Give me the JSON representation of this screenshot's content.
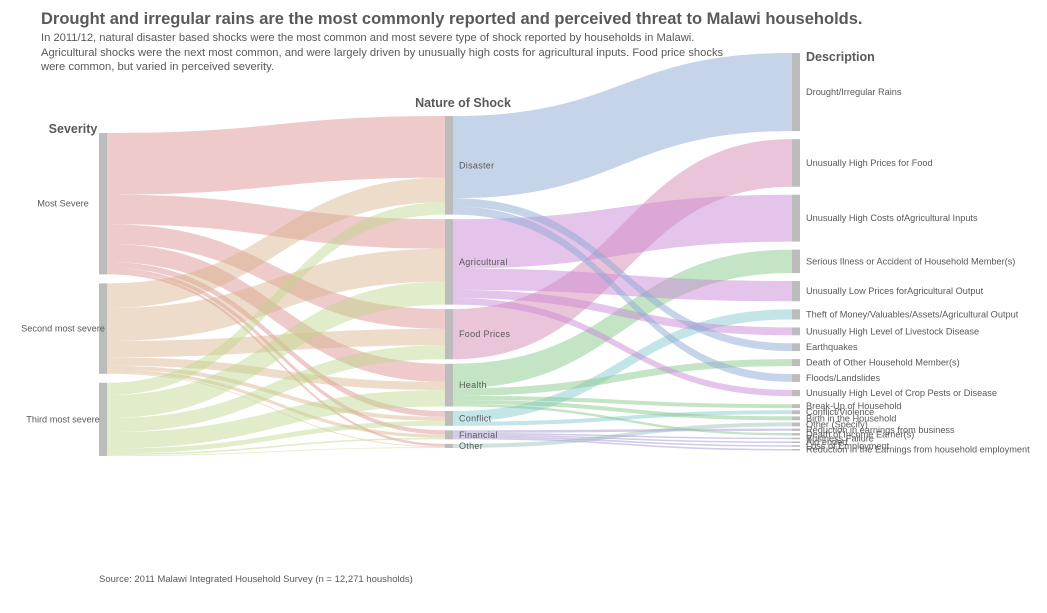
{
  "title": "Drought and irregular rains are the most commonly reported and perceived threat to Malawi households.",
  "subtitle": "In 2011/12, natural disaster based shocks were the most common and most severe type of shock reported by households in Malawi. Agricultural shocks were the next most common, and were largely driven by unusually high costs for agricultural inputs. Food price shocks were common, but varied in perceived severity.",
  "source": "Source: 2011 Malawi Integrated Household Survey (n = 12,271 housholds)",
  "chart_data": {
    "type": "sankey",
    "columns": [
      "Severity",
      "Nature of Shock",
      "Description"
    ],
    "units": "approximate relative share of reported shocks",
    "severity_nodes": [
      {
        "id": "s1",
        "label": "Most Severe",
        "color": "#d98a8a"
      },
      {
        "id": "s2",
        "label": "Second most severe",
        "color": "#d9b28a"
      },
      {
        "id": "s3",
        "label": "Third most severe",
        "color": "#bdd48a"
      }
    ],
    "nature_nodes": [
      {
        "id": "disaster",
        "label": "Disaster",
        "color": "#8eaad3"
      },
      {
        "id": "agri",
        "label": "Agricultural",
        "color": "#c98ad6"
      },
      {
        "id": "food",
        "label": "Food Prices",
        "color": "#d68ab4"
      },
      {
        "id": "health",
        "label": "Health",
        "color": "#8ac98e"
      },
      {
        "id": "conflict",
        "label": "Conflict",
        "color": "#8acbd2"
      },
      {
        "id": "financial",
        "label": "Financial",
        "color": "#a899d4"
      },
      {
        "id": "other",
        "label": "Other",
        "color": "#9fc4c0"
      }
    ],
    "description_nodes": [
      {
        "id": "d_drought",
        "label": "Drought/Irregular Rains",
        "from": "disaster",
        "value": 100
      },
      {
        "id": "d_foodprice",
        "label": "Unusually High Prices for Food",
        "from": "food",
        "value": 61
      },
      {
        "id": "d_agriinput",
        "label": "Unusually High Costs ofAgricultural Inputs",
        "from": "agri",
        "value": 60
      },
      {
        "id": "d_illness",
        "label": "Serious Ilness or Accident of Household Member(s)",
        "from": "health",
        "value": 30
      },
      {
        "id": "d_lowprice",
        "label": "Unusually Low Prices forAgricultural Output",
        "from": "agri",
        "value": 26
      },
      {
        "id": "d_theft",
        "label": "Theft of Money/Valuables/Assets/Agricultural Output",
        "from": "conflict",
        "value": 13
      },
      {
        "id": "d_livestock",
        "label": "Unusually High Level of Livestock Disease",
        "from": "agri",
        "value": 10
      },
      {
        "id": "d_earthquake",
        "label": "Earthquakes",
        "from": "disaster",
        "value": 10
      },
      {
        "id": "d_death_other",
        "label": "Death of Other Household Member(s)",
        "from": "health",
        "value": 9
      },
      {
        "id": "d_flood",
        "label": "Floods/Landslides",
        "from": "disaster",
        "value": 10
      },
      {
        "id": "d_pests",
        "label": "Unusually High Level of Crop Pests or Disease",
        "from": "agri",
        "value": 8
      },
      {
        "id": "d_breakup",
        "label": "Break-Up of Household",
        "from": "health",
        "value": 5
      },
      {
        "id": "d_conflict",
        "label": "Conflict/Violence",
        "from": "conflict",
        "value": 5
      },
      {
        "id": "d_birth",
        "label": "Birth in the Household",
        "from": "health",
        "value": 5
      },
      {
        "id": "d_other",
        "label": "Other (Specify)",
        "from": "other",
        "value": 5
      },
      {
        "id": "d_earnings_bus",
        "label": "Reduction in earnings from business",
        "from": "financial",
        "value": 3
      },
      {
        "id": "d_death_earner",
        "label": "Death of Income Earner(s)",
        "from": "health",
        "value": 3
      },
      {
        "id": "d_busfail",
        "label": "Business Failure",
        "from": "financial",
        "value": 2
      },
      {
        "id": "d_aid",
        "label": "Aid ended",
        "from": "financial",
        "value": 2
      },
      {
        "id": "d_loss_emp",
        "label": "Loss of Employment",
        "from": "financial",
        "value": 2
      },
      {
        "id": "d_earnings_emp",
        "label": "Reduction in the Earnings from household employment",
        "from": "financial",
        "value": 2
      }
    ],
    "severity_links": [
      {
        "from": "s1",
        "to": "disaster",
        "value": 75
      },
      {
        "from": "s1",
        "to": "agri",
        "value": 36
      },
      {
        "from": "s1",
        "to": "food",
        "value": 24
      },
      {
        "from": "s1",
        "to": "health",
        "value": 22
      },
      {
        "from": "s1",
        "to": "conflict",
        "value": 7
      },
      {
        "from": "s1",
        "to": "financial",
        "value": 5
      },
      {
        "from": "s1",
        "to": "other",
        "value": 3
      },
      {
        "from": "s2",
        "to": "disaster",
        "value": 30
      },
      {
        "from": "s2",
        "to": "agri",
        "value": 40
      },
      {
        "from": "s2",
        "to": "food",
        "value": 20
      },
      {
        "from": "s2",
        "to": "health",
        "value": 10
      },
      {
        "from": "s2",
        "to": "conflict",
        "value": 5
      },
      {
        "from": "s2",
        "to": "financial",
        "value": 4
      },
      {
        "from": "s2",
        "to": "other",
        "value": 1
      },
      {
        "from": "s3",
        "to": "disaster",
        "value": 15
      },
      {
        "from": "s3",
        "to": "agri",
        "value": 28
      },
      {
        "from": "s3",
        "to": "food",
        "value": 17
      },
      {
        "from": "s3",
        "to": "health",
        "value": 20
      },
      {
        "from": "s3",
        "to": "conflict",
        "value": 6
      },
      {
        "from": "s3",
        "to": "financial",
        "value": 2
      },
      {
        "from": "s3",
        "to": "other",
        "value": 1
      }
    ]
  }
}
